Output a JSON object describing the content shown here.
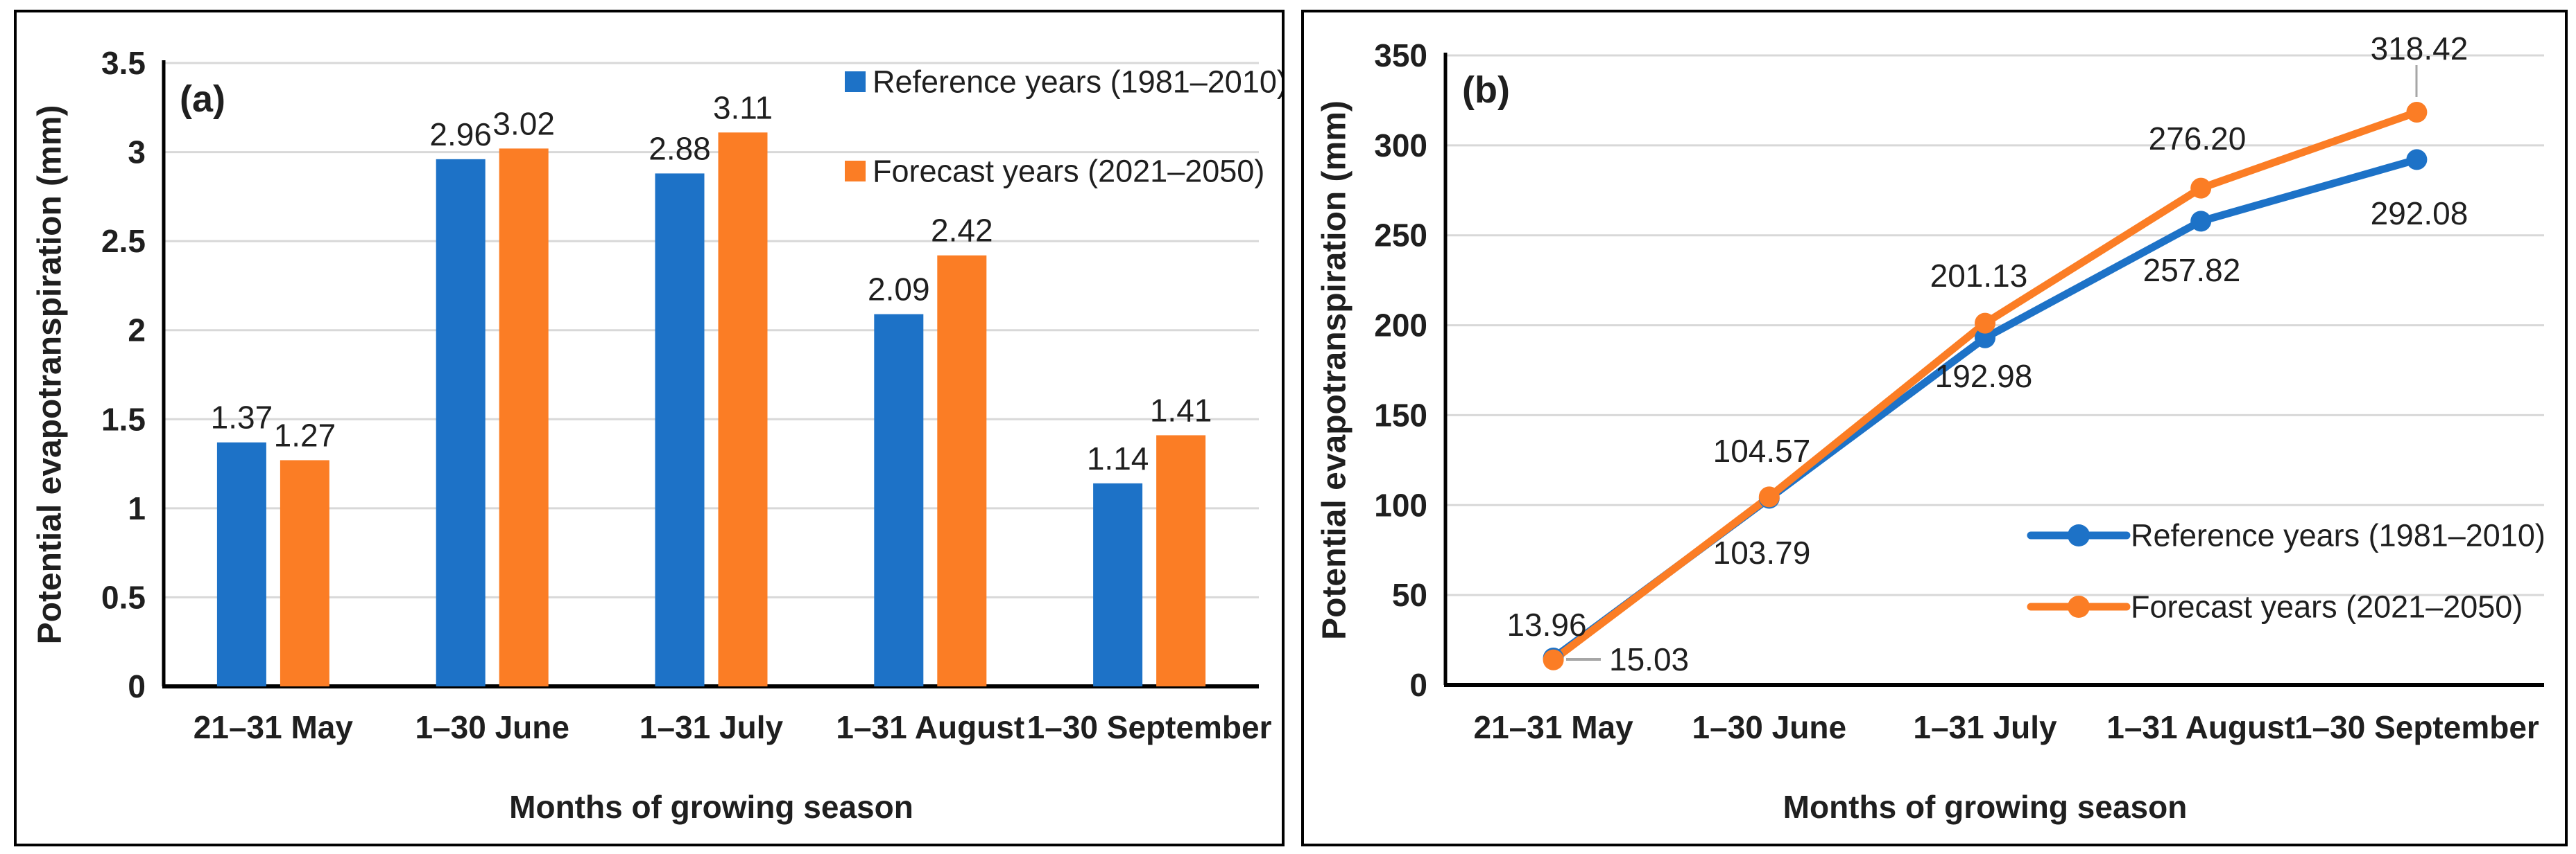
{
  "figure": {
    "panels": [
      {
        "label": "(a)"
      },
      {
        "label": "(b)"
      }
    ]
  },
  "colors": {
    "reference_blue": "#1D72C7",
    "forecast_orange": "#FB7D25",
    "gridline": "#D8D8D8",
    "axis_line": "#000000",
    "text": "#1F1F1F",
    "leader_gray": "#A6A6A6",
    "panel_border": "#000000",
    "background": "#FFFFFF"
  },
  "chart_data": [
    {
      "type": "bar",
      "panel_label": "(a)",
      "title": "",
      "categories": [
        "21–31 May",
        "1–30 June",
        "1–31 July",
        "1–31 August",
        "1–30 September"
      ],
      "series": [
        {
          "name": "Reference years (1981–2010)",
          "color_key": "reference_blue",
          "values": [
            1.37,
            2.96,
            2.88,
            2.09,
            1.14
          ]
        },
        {
          "name": "Forecast years (2021–2050)",
          "color_key": "forecast_orange",
          "values": [
            1.27,
            3.02,
            3.11,
            2.42,
            1.41
          ]
        }
      ],
      "xlabel": "Months of growing season",
      "ylabel": "Potential evapotranspiration (mm)",
      "ylim": [
        0,
        3.5
      ],
      "ytick_step": 0.5,
      "ytick_labels": [
        "0",
        "0.5",
        "1",
        "1.5",
        "2",
        "2.5",
        "3",
        "3.5"
      ],
      "grid": true,
      "legend_position": "top-right",
      "data_labels": true
    },
    {
      "type": "line",
      "panel_label": "(b)",
      "title": "",
      "categories": [
        "21–31 May",
        "1–30 June",
        "1–31 July",
        "1–31 August",
        "1–30 September"
      ],
      "series": [
        {
          "name": "Reference years (1981–2010)",
          "color_key": "reference_blue",
          "values": [
            15.03,
            103.79,
            192.98,
            257.82,
            292.08
          ]
        },
        {
          "name": "Forecast years (2021–2050)",
          "color_key": "forecast_orange",
          "values": [
            13.96,
            104.57,
            201.13,
            276.2,
            318.42
          ]
        }
      ],
      "xlabel": "Months of growing season",
      "ylabel": "Potential evapotranspiration (mm)",
      "ylim": [
        0,
        350
      ],
      "ytick_step": 50,
      "ytick_labels": [
        "0",
        "50",
        "100",
        "150",
        "200",
        "250",
        "300",
        "350"
      ],
      "grid": true,
      "legend_position": "middle-right",
      "data_labels": true,
      "marker": "circle"
    }
  ]
}
